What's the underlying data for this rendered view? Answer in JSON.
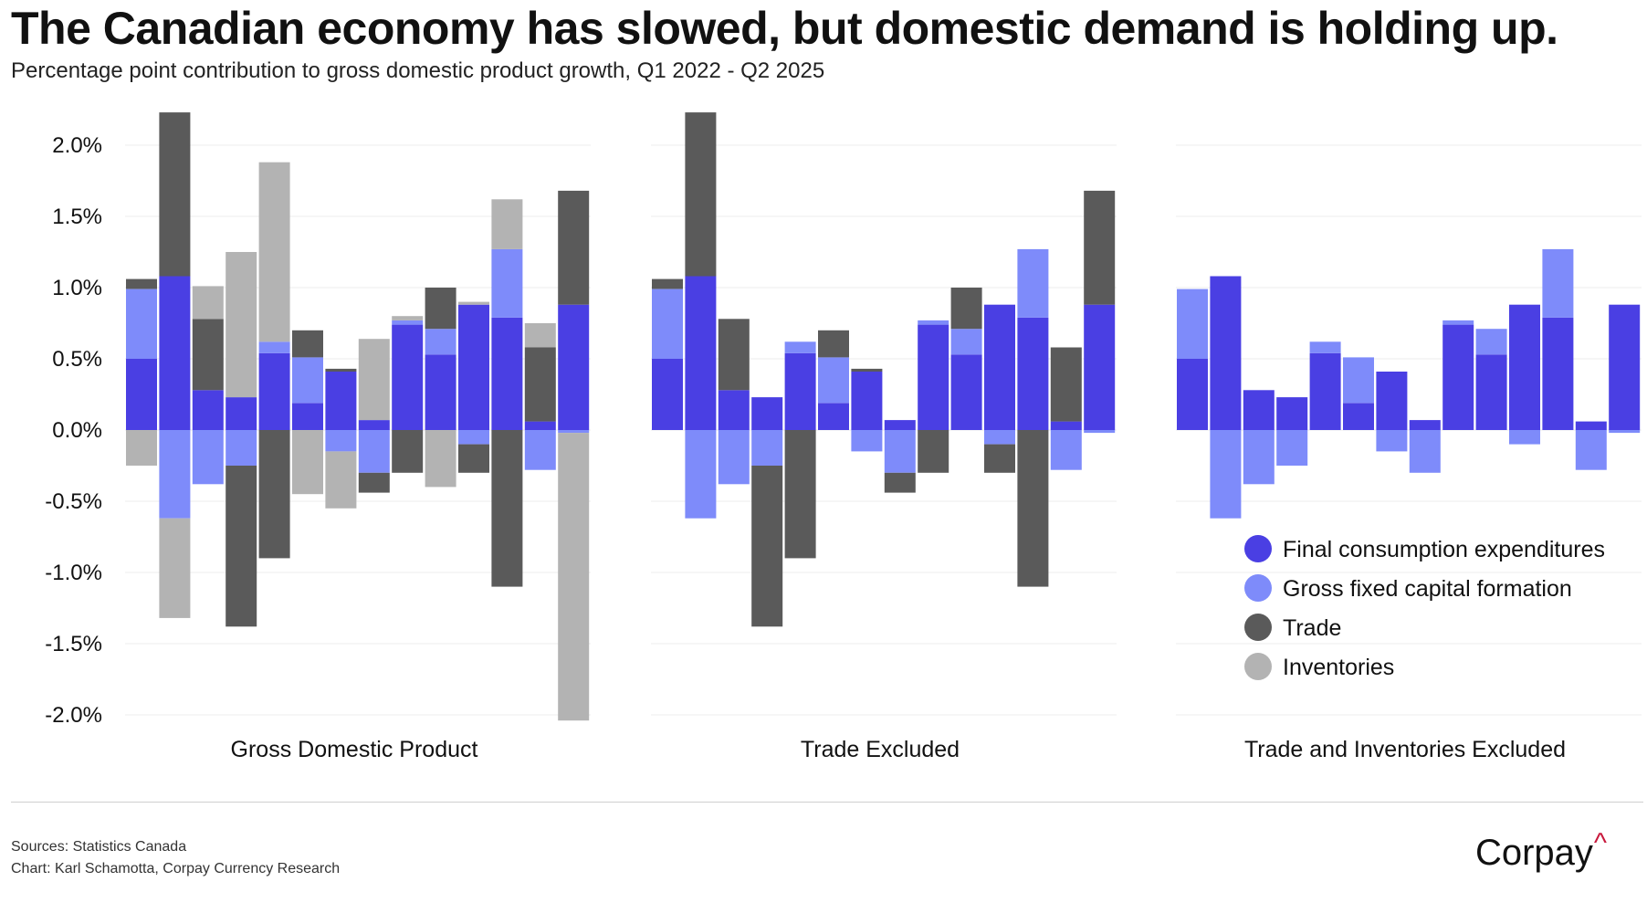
{
  "title": "The Canadian economy has slowed, but domestic demand is holding up.",
  "subtitle": "Percentage point contribution to gross domestic product growth, Q1 2022 - Q2 2025",
  "sources": "Sources: Statistics Canada",
  "credit": "Chart: Karl Schamotta, Corpay Currency Research",
  "brand": {
    "name": "Corpay",
    "mark": "^"
  },
  "chart_data": {
    "type": "bar",
    "stacked": true,
    "ylim": [
      -2.0,
      2.2
    ],
    "yticks": [
      {
        "value": 2.0,
        "label": "2.0%"
      },
      {
        "value": 1.5,
        "label": "1.5%"
      },
      {
        "value": 1.0,
        "label": "1.0%"
      },
      {
        "value": 0.5,
        "label": "0.5%"
      },
      {
        "value": 0.0,
        "label": "0.0%"
      },
      {
        "value": -0.5,
        "label": "-0.5%"
      },
      {
        "value": -1.0,
        "label": "-1.0%"
      },
      {
        "value": -1.5,
        "label": "-1.5%"
      },
      {
        "value": -2.0,
        "label": "-2.0%"
      }
    ],
    "grid": true,
    "legend_position": "bottom-right",
    "series": [
      {
        "key": "fce",
        "name": "Final consumption expenditures",
        "color": "#4a3fe3",
        "values": [
          0.5,
          1.08,
          0.28,
          0.23,
          0.54,
          0.19,
          0.41,
          0.07,
          0.74,
          0.53,
          0.88,
          0.79,
          0.06,
          0.88
        ]
      },
      {
        "key": "gfcf",
        "name": "Gross fixed capital formation",
        "color": "#7e8bfa",
        "values": [
          0.49,
          -0.62,
          -0.38,
          -0.25,
          0.08,
          0.32,
          -0.15,
          -0.3,
          0.03,
          0.18,
          -0.1,
          0.48,
          -0.28,
          -0.02
        ]
      },
      {
        "key": "trade",
        "name": "Trade",
        "color": "#5a5a5a",
        "values": [
          0.07,
          1.15,
          0.5,
          -1.13,
          -0.9,
          0.19,
          0.02,
          -0.14,
          -0.3,
          0.29,
          -0.2,
          -1.1,
          0.52,
          0.8
        ]
      },
      {
        "key": "inv",
        "name": "Inventories",
        "color": "#b3b3b3",
        "values": [
          -0.25,
          -0.7,
          0.23,
          1.02,
          1.26,
          -0.45,
          -0.4,
          0.57,
          0.03,
          -0.4,
          0.02,
          0.35,
          0.17,
          -2.02
        ]
      }
    ],
    "panels": [
      {
        "label": "Gross Domestic Product",
        "series_keys": [
          "fce",
          "gfcf",
          "trade",
          "inv"
        ]
      },
      {
        "label": "Trade Excluded",
        "series_keys": [
          "fce",
          "gfcf",
          "trade"
        ]
      },
      {
        "label": "Trade and Inventories Excluded",
        "series_keys": [
          "fce",
          "gfcf"
        ]
      }
    ],
    "x_period": "Q1 2022 - Q2 2025"
  }
}
